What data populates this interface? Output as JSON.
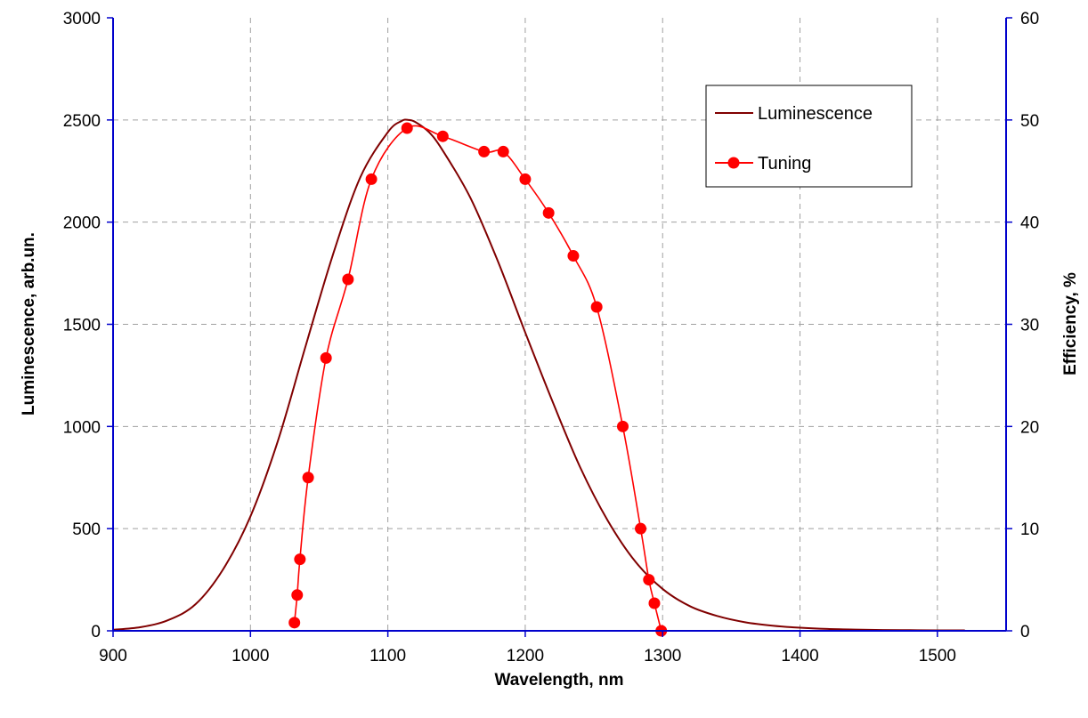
{
  "chart_data": {
    "type": "line",
    "xlabel": "Wavelength, nm",
    "ylabel_left": "Luminescence, arb.un.",
    "ylabel_right": "Efficiency, %",
    "xlim": [
      900,
      1550
    ],
    "ylim_left": [
      0,
      3000
    ],
    "ylim_right": [
      0,
      60
    ],
    "x_ticks": [
      900,
      1000,
      1100,
      1200,
      1300,
      1400,
      1500
    ],
    "y_left_ticks": [
      0,
      500,
      1000,
      1500,
      2000,
      2500,
      3000
    ],
    "y_right_ticks": [
      0,
      10,
      20,
      30,
      40,
      50,
      60
    ],
    "grid": true,
    "legend_position": "top-right",
    "colors": {
      "luminescence": "#800000",
      "tuning": "#ff0000",
      "axis": "#0000cc",
      "grid": "#a0a0a0"
    },
    "series": [
      {
        "name": "Luminescence",
        "axis": "left",
        "style": "line",
        "x": [
          900,
          920,
          940,
          960,
          980,
          1000,
          1020,
          1040,
          1060,
          1080,
          1100,
          1110,
          1115,
          1120,
          1130,
          1140,
          1160,
          1180,
          1200,
          1220,
          1240,
          1260,
          1280,
          1300,
          1320,
          1340,
          1360,
          1380,
          1400,
          1420,
          1440,
          1460,
          1480,
          1500,
          1520
        ],
        "values": [
          5,
          18,
          52,
          130,
          300,
          560,
          930,
          1390,
          1840,
          2220,
          2440,
          2495,
          2500,
          2490,
          2440,
          2350,
          2120,
          1810,
          1460,
          1120,
          800,
          540,
          340,
          205,
          120,
          72,
          42,
          25,
          15,
          9,
          6,
          4,
          3,
          2,
          2
        ]
      },
      {
        "name": "Tuning",
        "axis": "right",
        "style": "line-markers",
        "x": [
          1032,
          1034,
          1036,
          1042,
          1055,
          1071,
          1088,
          1114,
          1140,
          1170,
          1184,
          1200,
          1217,
          1235,
          1252,
          1271,
          1284,
          1290,
          1294,
          1299
        ],
        "values": [
          0.8,
          3.5,
          7,
          15,
          26.7,
          34.4,
          44.2,
          49.2,
          48.4,
          46.9,
          46.9,
          44.2,
          40.9,
          36.7,
          31.7,
          20,
          10,
          5,
          2.7,
          0
        ]
      }
    ]
  }
}
